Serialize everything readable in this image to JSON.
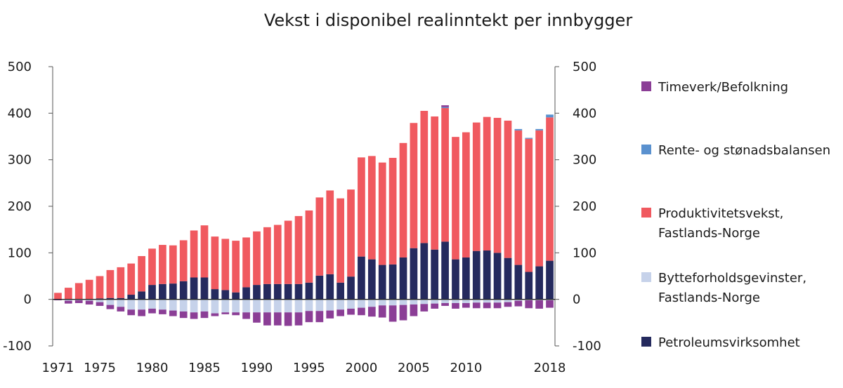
{
  "chart_data": {
    "type": "bar",
    "stacked": true,
    "title": "Vekst i disponibel realinntekt per innbygger",
    "xlabel": "",
    "ylabel": "",
    "ylim": [
      -100,
      500
    ],
    "yticks": [
      -100,
      0,
      100,
      200,
      300,
      400,
      500
    ],
    "xticks": [
      "1971",
      "1975",
      "1980",
      "1985",
      "1990",
      "1995",
      "2000",
      "2005",
      "2010",
      "2018"
    ],
    "categories": [
      "1971",
      "1972",
      "1973",
      "1974",
      "1975",
      "1976",
      "1977",
      "1978",
      "1979",
      "1980",
      "1981",
      "1982",
      "1983",
      "1984",
      "1985",
      "1986",
      "1987",
      "1988",
      "1989",
      "1990",
      "1991",
      "1992",
      "1993",
      "1994",
      "1995",
      "1996",
      "1997",
      "1998",
      "1999",
      "2000",
      "2001",
      "2002",
      "2003",
      "2004",
      "2005",
      "2006",
      "2007",
      "2008",
      "2009",
      "2010",
      "2011",
      "2012",
      "2013",
      "2014",
      "2015",
      "2016",
      "2017",
      "2018"
    ],
    "series": [
      {
        "name": "Petroleumsvirksomhet",
        "color": "#252a5e",
        "values": [
          0,
          0,
          0,
          0,
          2,
          3,
          3,
          10,
          17,
          31,
          33,
          34,
          39,
          47,
          47,
          22,
          20,
          15,
          26,
          31,
          33,
          33,
          33,
          33,
          36,
          51,
          54,
          36,
          49,
          92,
          86,
          74,
          75,
          90,
          110,
          121,
          107,
          124,
          86,
          90,
          104,
          105,
          100,
          89,
          74,
          59,
          71,
          83
        ]
      },
      {
        "name": "Produktivitetsvekst, Fastlands-Norge",
        "color": "#f0595f",
        "values": [
          14,
          25,
          35,
          42,
          48,
          60,
          66,
          67,
          76,
          78,
          84,
          82,
          88,
          101,
          112,
          113,
          110,
          111,
          107,
          115,
          122,
          127,
          136,
          146,
          155,
          168,
          180,
          181,
          187,
          213,
          222,
          220,
          229,
          246,
          269,
          284,
          286,
          287,
          263,
          269,
          276,
          287,
          290,
          295,
          289,
          286,
          292,
          308
        ]
      },
      {
        "name": "Rente- og stønadsbalansen",
        "color": "#5a91cf",
        "values": [
          0,
          0,
          0,
          0,
          0,
          0,
          0,
          0,
          0,
          0,
          0,
          0,
          0,
          0,
          0,
          0,
          0,
          0,
          0,
          0,
          0,
          0,
          0,
          0,
          0,
          0,
          0,
          0,
          0,
          0,
          0,
          0,
          0,
          0,
          0,
          0,
          0,
          2,
          0,
          0,
          0,
          0,
          0,
          0,
          3,
          2,
          3,
          6
        ]
      },
      {
        "name": "Timeverk/Befolkning",
        "color": "#8b3e96",
        "values": [
          0,
          0,
          0,
          0,
          0,
          0,
          0,
          0,
          0,
          0,
          0,
          0,
          0,
          0,
          0,
          0,
          0,
          0,
          0,
          0,
          0,
          0,
          0,
          0,
          0,
          0,
          0,
          0,
          0,
          0,
          0,
          0,
          0,
          0,
          0,
          0,
          0,
          4,
          0,
          0,
          0,
          0,
          0,
          0,
          0,
          0,
          0,
          0
        ]
      },
      {
        "name": "Bytteforholdsgevinster, Fastlands-Norge",
        "color": "#c6d2ea",
        "values": [
          0,
          -3,
          -2,
          -3,
          -6,
          -12,
          -16,
          -22,
          -22,
          -20,
          -22,
          -24,
          -26,
          -28,
          -26,
          -30,
          -28,
          -28,
          -28,
          -28,
          -28,
          -28,
          -28,
          -28,
          -25,
          -25,
          -24,
          -22,
          -20,
          -18,
          -16,
          -13,
          -13,
          -12,
          -11,
          -10,
          -9,
          -8,
          -8,
          -8,
          -7,
          -7,
          -7,
          -6,
          -3,
          -2,
          -2,
          -2
        ]
      },
      {
        "name": "Timeverk/Befolkning",
        "color": "#8b3e96",
        "values": [
          -2,
          -6,
          -6,
          -8,
          -8,
          -9,
          -10,
          -12,
          -14,
          -10,
          -10,
          -12,
          -14,
          -14,
          -14,
          -6,
          -4,
          -6,
          -14,
          -22,
          -28,
          -28,
          -29,
          -28,
          -24,
          -24,
          -17,
          -14,
          -13,
          -16,
          -21,
          -26,
          -35,
          -33,
          -25,
          -16,
          -11,
          -6,
          -12,
          -10,
          -12,
          -12,
          -12,
          -10,
          -12,
          -17,
          -18,
          -16
        ]
      }
    ],
    "legend": [
      "Timeverk/Befolkning",
      "Rente- og stønadsbalansen",
      "Produktivitetsvekst,|Fastlands-Norge",
      "Bytteforholdsgevinster,|Fastlands-Norge",
      "Petroleumsvirksomhet"
    ],
    "legend_colors": [
      "#8b3e96",
      "#5a91cf",
      "#f0595f",
      "#c6d2ea",
      "#252a5e"
    ],
    "legend_placement": "right",
    "grid": false
  }
}
